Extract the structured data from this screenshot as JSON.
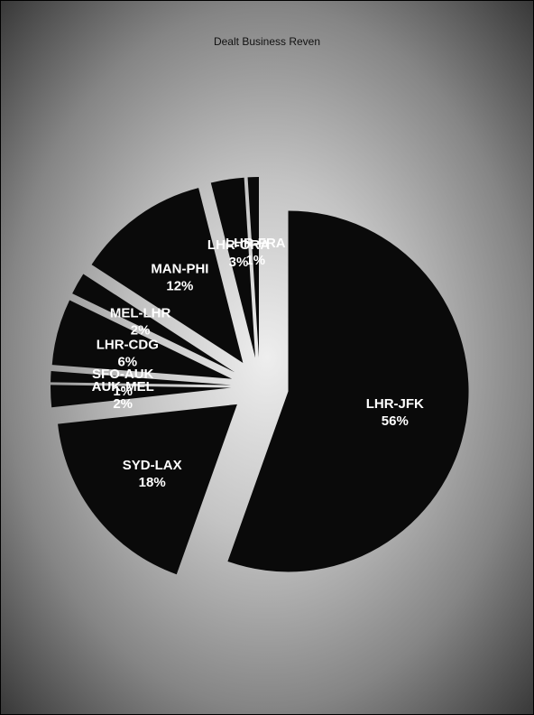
{
  "chart_data": {
    "type": "pie",
    "title": "Dealt Business Reven",
    "slice_color": "#0a0a0a",
    "label_color": "#ffffff",
    "start_angle_deg": 0,
    "slices": [
      {
        "name": "LHR-JFK",
        "value": 56,
        "pct_label": "56%",
        "explode": 0.16
      },
      {
        "name": "SYD-LAX",
        "value": 18,
        "pct_label": "18%",
        "explode": 0.16
      },
      {
        "name": "AUK-MEL",
        "value": 2,
        "pct_label": "2%",
        "explode": 0.16
      },
      {
        "name": "SFO-AUK",
        "value": 1,
        "pct_label": "1%",
        "explode": 0.16
      },
      {
        "name": "LHR-CDG",
        "value": 6,
        "pct_label": "6%",
        "explode": 0.16
      },
      {
        "name": "MEL-LHR",
        "value": 2,
        "pct_label": "2%",
        "explode": 0.16
      },
      {
        "name": "MAN-PHI",
        "value": 12,
        "pct_label": "12%",
        "explode": 0.16
      },
      {
        "name": "LHR-ORA",
        "value": 3,
        "pct_label": "3%",
        "explode": 0.16
      },
      {
        "name": "LHR-FRA",
        "value": 1,
        "pct_label": "1%",
        "explode": 0.16
      }
    ]
  }
}
